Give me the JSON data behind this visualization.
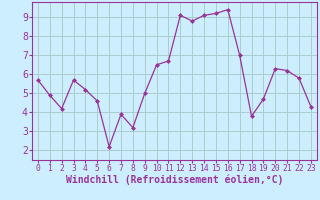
{
  "x": [
    0,
    1,
    2,
    3,
    4,
    5,
    6,
    7,
    8,
    9,
    10,
    11,
    12,
    13,
    14,
    15,
    16,
    17,
    18,
    19,
    20,
    21,
    22,
    23
  ],
  "y": [
    5.7,
    4.9,
    4.2,
    5.7,
    5.2,
    4.6,
    2.2,
    3.9,
    3.2,
    5.0,
    6.5,
    6.7,
    9.1,
    8.8,
    9.1,
    9.2,
    9.4,
    7.0,
    3.8,
    4.7,
    6.3,
    6.2,
    5.8,
    4.3
  ],
  "line_color": "#993399",
  "marker": "D",
  "marker_size": 2.0,
  "bg_color": "#cceeff",
  "grid_color": "#aacccc",
  "xlabel": "Windchill (Refroidissement éolien,°C)",
  "ylim": [
    1.5,
    9.8
  ],
  "xlim": [
    -0.5,
    23.5
  ],
  "yticks": [
    2,
    3,
    4,
    5,
    6,
    7,
    8,
    9
  ],
  "xticks": [
    0,
    1,
    2,
    3,
    4,
    5,
    6,
    7,
    8,
    9,
    10,
    11,
    12,
    13,
    14,
    15,
    16,
    17,
    18,
    19,
    20,
    21,
    22,
    23
  ],
  "tick_color": "#993399",
  "label_color": "#993399",
  "spine_color": "#993399",
  "xlabel_fontsize": 7.0,
  "ytick_fontsize": 7.0,
  "xtick_fontsize": 5.8
}
